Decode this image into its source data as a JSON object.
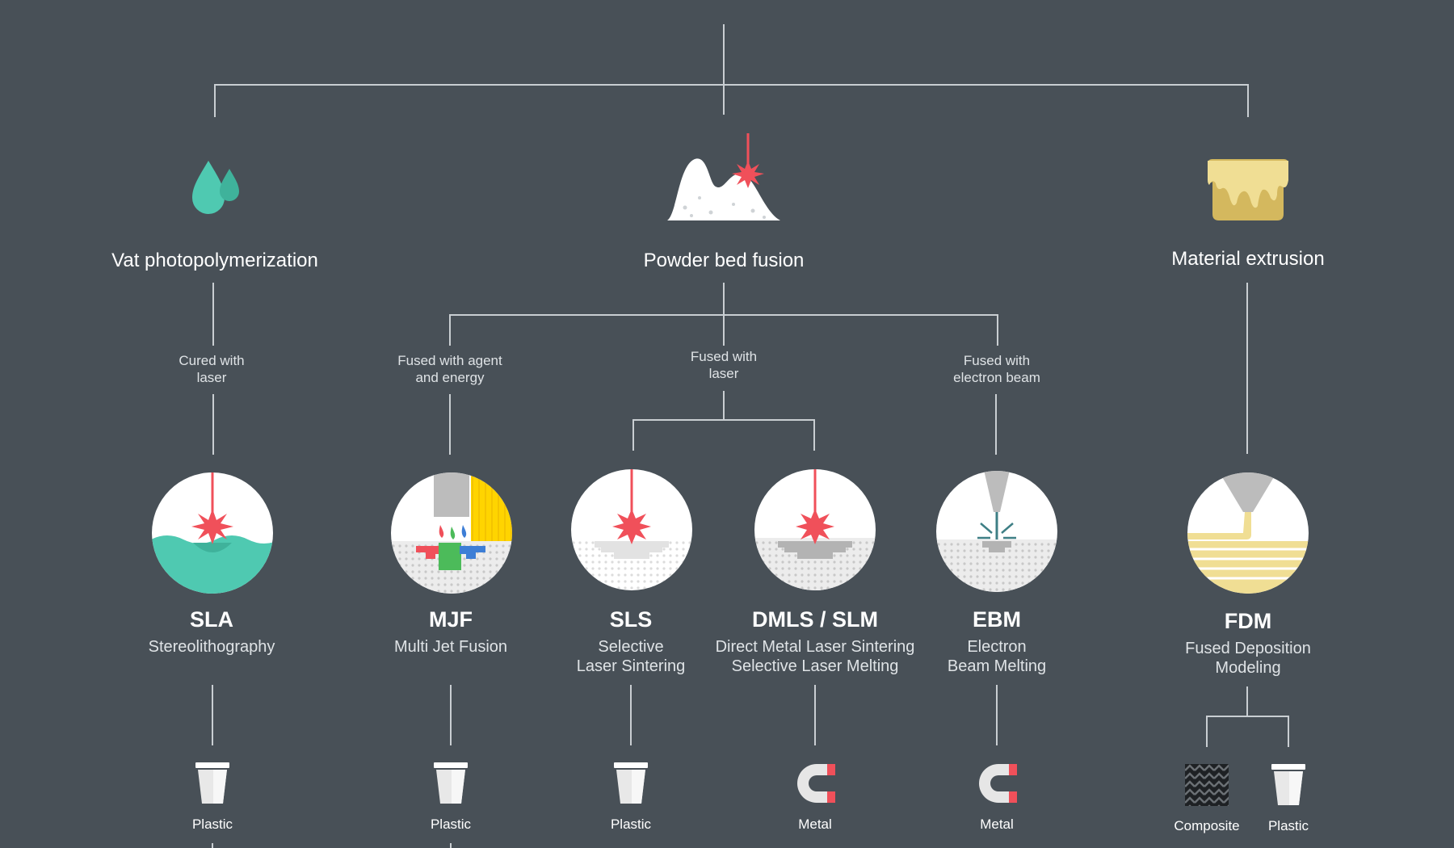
{
  "categories": {
    "vat": {
      "label": "Vat photopolymerization",
      "color": "#4fc9b1"
    },
    "powder": {
      "label": "Powder bed fusion"
    },
    "extrusion": {
      "label": "Material extrusion",
      "color": "#e9d38a"
    }
  },
  "processes": {
    "cured_laser": {
      "line1": "Cured with",
      "line2": "laser"
    },
    "agent_energy": {
      "line1": "Fused with agent",
      "line2": "and energy"
    },
    "fused_laser": {
      "line1": "Fused with",
      "line2": "laser"
    },
    "electron_beam": {
      "line1": "Fused with",
      "line2": "electron beam"
    }
  },
  "technologies": {
    "sla": {
      "abbr": "SLA",
      "line1": "Stereolithography",
      "material": "Plastic"
    },
    "mjf": {
      "abbr": "MJF",
      "line1": "Multi Jet Fusion",
      "material": "Plastic"
    },
    "sls": {
      "abbr": "SLS",
      "line1": "Selective",
      "line2": "Laser Sintering",
      "material": "Plastic"
    },
    "dmls": {
      "abbr": "DMLS / SLM",
      "line1": "Direct Metal Laser Sintering",
      "line2": "Selective Laser Melting",
      "material": "Metal"
    },
    "ebm": {
      "abbr": "EBM",
      "line1": "Electron",
      "line2": "Beam Melting",
      "material": "Metal"
    },
    "fdm": {
      "abbr": "FDM",
      "line1": "Fused Deposition",
      "line2": "Modeling",
      "materials": [
        "Composite",
        "Plastic"
      ]
    }
  },
  "colors": {
    "background": "#485057",
    "connector": "#c9ced2",
    "laser": "#f0505a",
    "water": "#4fc9b1",
    "yellow": "#ffd400",
    "metal_grey": "#b8b8b8"
  }
}
